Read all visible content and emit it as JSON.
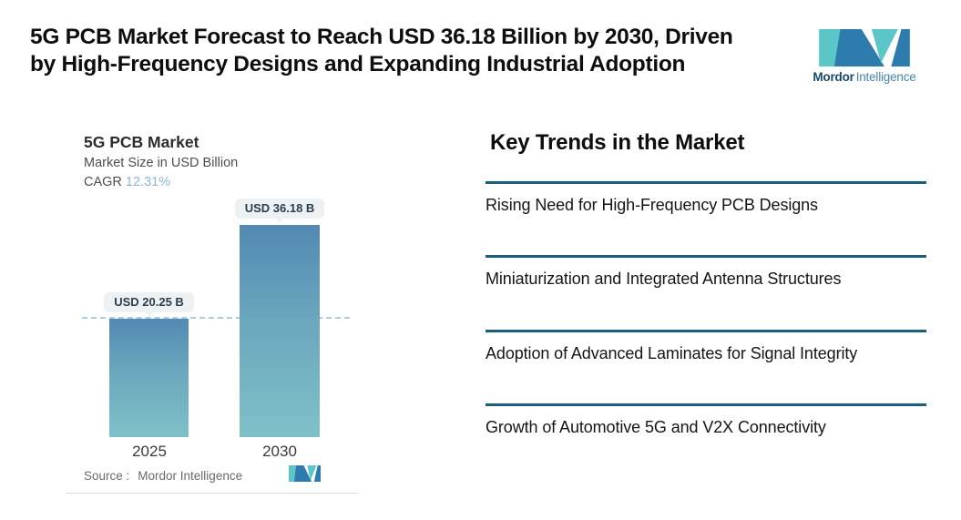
{
  "header": {
    "title_line1": "5G PCB Market Forecast to Reach USD 36.18 Billion by 2030, Driven",
    "title_line2": "by High-Frequency Designs and Expanding Industrial Adoption"
  },
  "brand": {
    "name_bold": "Mordor",
    "name_light": "Intelligence"
  },
  "icons": {
    "brand_mark": "mordor-intelligence-logo",
    "mini_mark": "mordor-intelligence-logo-small"
  },
  "chart": {
    "title": "5G PCB Market",
    "subtitle": "Market Size in USD Billion",
    "cagr_label": "CAGR",
    "cagr_value": "12.31%",
    "source_prefix": "Source :",
    "source_value": "Mordor Intelligence",
    "bars": [
      {
        "year": "2025",
        "label": "USD 20.25 B"
      },
      {
        "year": "2030",
        "label": "USD 36.18 B"
      }
    ]
  },
  "chart_data": {
    "type": "bar",
    "categories": [
      "2025",
      "2030"
    ],
    "values": [
      20.25,
      36.18
    ],
    "title": "5G PCB Market",
    "subtitle": "Market Size in USD Billion",
    "cagr_percent": 12.31,
    "data_labels": [
      "USD 20.25 B",
      "USD 36.18 B"
    ],
    "reference_line_y": 20.25,
    "reference_line_style": "dashed",
    "xlabel": "",
    "ylabel": "Market Size in USD Billion",
    "ylim": [
      0,
      36.18
    ],
    "grid": false,
    "legend": false
  },
  "trends": {
    "heading": "Key Trends in the Market",
    "items": [
      "Rising Need for High-Frequency PCB Designs",
      "Miniaturization and Integrated Antenna Structures",
      "Adoption of Advanced Laminates for Signal Integrity",
      "Growth of Automotive 5G and V2X Connectivity"
    ]
  },
  "colors": {
    "accent_teal": "#5AC6C8",
    "accent_blue": "#2E7CAD",
    "trend_rule": "#1A5D7F",
    "bar_gradient_top": "#5389B3",
    "bar_gradient_bottom": "#7FC0C8",
    "dashed_reference": "#AACBE2",
    "cagr_value_text": "#8CB9DA",
    "tooltip_background": "#EDF1F3"
  }
}
